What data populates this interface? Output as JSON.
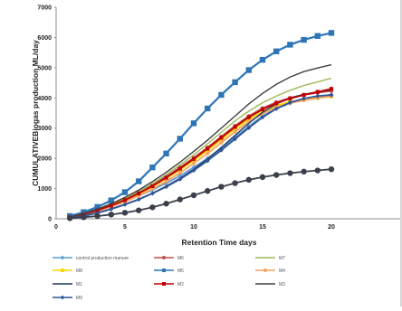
{
  "chart_data": {
    "type": "line",
    "title": "",
    "xlabel": "Retention Time  days",
    "ylabel": "CUMULATIVEBiogas production ML/day",
    "xlim": [
      0,
      25
    ],
    "ylim": [
      0,
      7000
    ],
    "x_ticks": [
      "0",
      "5",
      "10",
      "15",
      "20"
    ],
    "y_ticks": [
      "0",
      "1000",
      "2000",
      "3000",
      "4000",
      "5000",
      "6000",
      "7000"
    ],
    "grid": false,
    "legend_position": "bottom",
    "x": [
      1,
      2,
      3,
      4,
      5,
      6,
      7,
      8,
      9,
      10,
      11,
      12,
      13,
      14,
      15,
      16,
      17,
      18,
      19,
      20
    ],
    "series": [
      {
        "name": "control production manure",
        "color": "#5b9bd5",
        "marker": "diamond",
        "values": [
          60,
          150,
          280,
          420,
          580,
          760,
          960,
          1180,
          1420,
          1700,
          2000,
          2330,
          2700,
          3060,
          3400,
          3650,
          3820,
          3930,
          4020,
          4100
        ]
      },
      {
        "name": "M6",
        "color": "#c0504d",
        "marker": "circle",
        "values": [
          80,
          170,
          310,
          470,
          650,
          870,
          1120,
          1400,
          1700,
          2020,
          2360,
          2720,
          3080,
          3400,
          3660,
          3860,
          4000,
          4100,
          4170,
          4230
        ]
      },
      {
        "name": "M7",
        "color": "#9bbb59",
        "marker": "none",
        "values": [
          70,
          170,
          320,
          480,
          680,
          900,
          1160,
          1460,
          1780,
          2120,
          2480,
          2860,
          3240,
          3560,
          3840,
          4060,
          4250,
          4410,
          4530,
          4650
        ]
      },
      {
        "name": "M8",
        "color": "#ffd700",
        "marker": "square",
        "values": [
          50,
          150,
          270,
          430,
          620,
          820,
          1060,
          1330,
          1620,
          1930,
          2260,
          2620,
          2970,
          3290,
          3550,
          3750,
          3870,
          3950,
          4000,
          4050
        ]
      },
      {
        "name": "M5",
        "color": "#2e75b6",
        "marker": "square",
        "values": [
          90,
          220,
          390,
          610,
          880,
          1240,
          1700,
          2160,
          2650,
          3160,
          3650,
          4100,
          4520,
          4920,
          5260,
          5540,
          5760,
          5920,
          6050,
          6150
        ]
      },
      {
        "name": "M4",
        "color": "#f4a460",
        "marker": "circle",
        "values": [
          40,
          130,
          250,
          400,
          560,
          760,
          990,
          1240,
          1520,
          1830,
          2160,
          2520,
          2880,
          3210,
          3480,
          3690,
          3830,
          3920,
          3990,
          4050
        ]
      },
      {
        "name": "M1",
        "color": "#1f3864",
        "marker": "none",
        "values": [
          30,
          100,
          200,
          330,
          480,
          650,
          850,
          1080,
          1340,
          1640,
          1980,
          2360,
          2760,
          3160,
          3520,
          3800,
          4000,
          4120,
          4200,
          4260
        ]
      },
      {
        "name": "M2",
        "color": "#c00000",
        "marker": "square",
        "values": [
          50,
          150,
          280,
          440,
          620,
          840,
          1080,
          1360,
          1660,
          1980,
          2320,
          2680,
          3040,
          3360,
          3620,
          3820,
          3980,
          4100,
          4200,
          4300
        ]
      },
      {
        "name": "M3",
        "color": "#404040",
        "marker": "none",
        "values": [
          60,
          170,
          320,
          500,
          710,
          950,
          1230,
          1540,
          1870,
          2230,
          2600,
          3000,
          3400,
          3800,
          4150,
          4450,
          4690,
          4870,
          4990,
          5100
        ]
      },
      {
        "name": "M9",
        "color": "#2f5597",
        "marker": "diamond",
        "values": [
          30,
          90,
          190,
          320,
          470,
          640,
          840,
          1060,
          1310,
          1600,
          1920,
          2270,
          2640,
          3010,
          3360,
          3640,
          3850,
          3980,
          4060,
          4100
        ]
      },
      {
        "name": "",
        "color": "#3a3f4b",
        "marker": "circle",
        "values": [
          20,
          50,
          90,
          140,
          200,
          280,
          380,
          500,
          640,
          780,
          920,
          1060,
          1180,
          1290,
          1380,
          1450,
          1510,
          1560,
          1600,
          1640
        ]
      }
    ]
  }
}
